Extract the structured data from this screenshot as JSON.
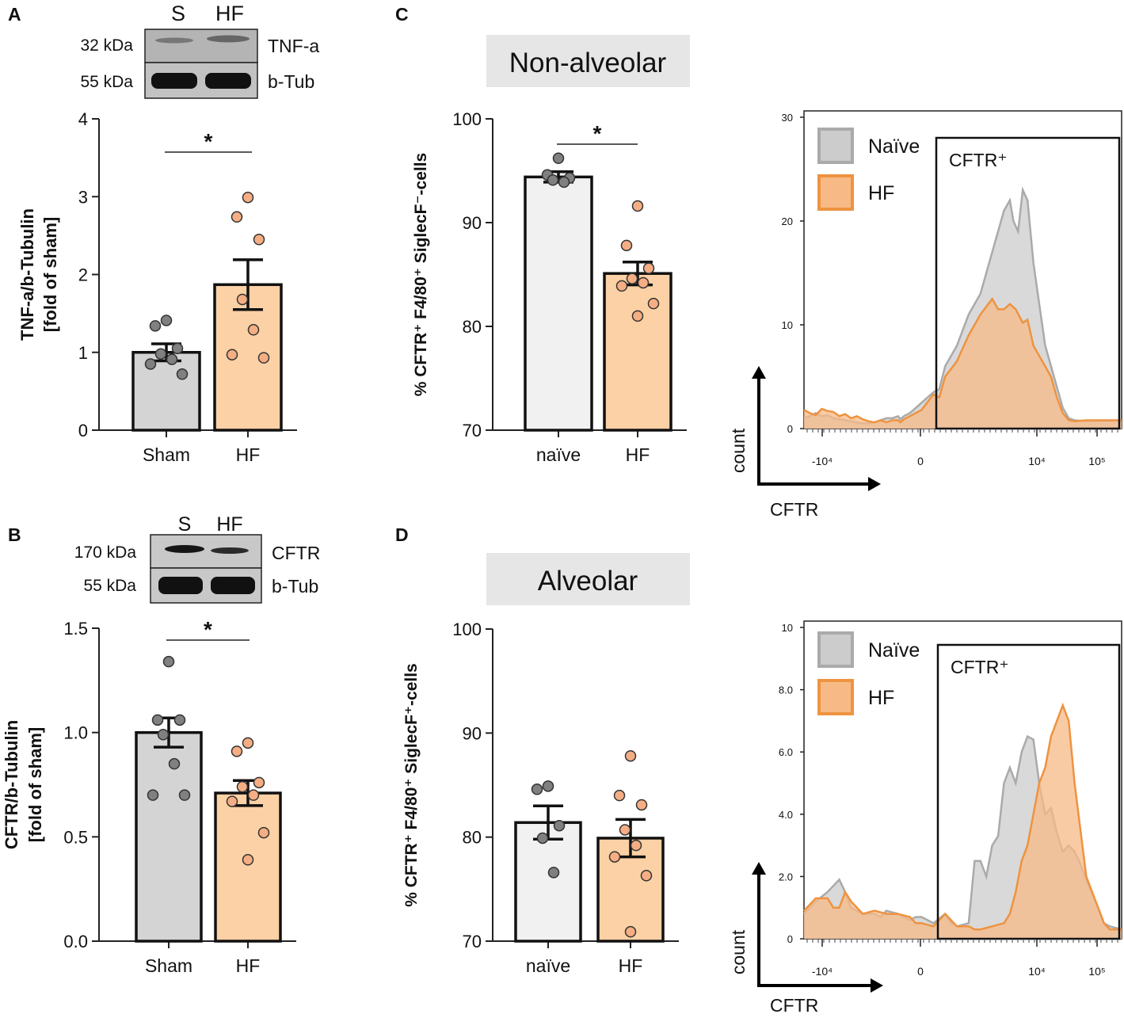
{
  "colors": {
    "sham_fill": "#d4d4d4",
    "hf_fill": "#fbd1a5",
    "naive_fill": "#f1f1f1",
    "sham_dot": "#808080",
    "hf_dot": "#f5ae84",
    "hist_naive_fill": "#cccccc",
    "hist_naive_line": "#aaaaaa",
    "hist_hf_fill": "#f7ba87",
    "hist_hf_line": "#ee9340",
    "title_box": "#e6e6e6"
  },
  "panels": {
    "A": {
      "label": "A",
      "blot": {
        "lanes": [
          "S",
          "HF"
        ],
        "rows": [
          {
            "mw": "32 kDa",
            "protein": "TNF-a"
          },
          {
            "mw": "55 kDa",
            "protein": "b-Tub"
          }
        ]
      }
    },
    "B": {
      "label": "B",
      "blot": {
        "lanes": [
          "S",
          "HF"
        ],
        "rows": [
          {
            "mw": "170 kDa",
            "protein": "CFTR"
          },
          {
            "mw": "55 kDa",
            "protein": "b-Tub"
          }
        ]
      }
    },
    "C": {
      "label": "C",
      "title": "Non-alveolar"
    },
    "D": {
      "label": "D",
      "title": "Alveolar"
    }
  },
  "chart_data": [
    {
      "id": "A",
      "type": "bar",
      "ylabel_line1": "TNF-a/b-Tubulin",
      "ylabel_line2": "[fold of sham]",
      "ylim": [
        0,
        4
      ],
      "yticks": [
        "0",
        "1",
        "2",
        "3",
        "4"
      ],
      "categories": [
        "Sham",
        "HF"
      ],
      "values": [
        1.0,
        1.87
      ],
      "sem": [
        0.11,
        0.32
      ],
      "points": [
        [
          1.41,
          1.34,
          1.05,
          0.98,
          0.91,
          0.85,
          0.72
        ],
        [
          2.99,
          2.74,
          2.45,
          1.68,
          1.29,
          0.97,
          0.93
        ]
      ],
      "significance": "*"
    },
    {
      "id": "B",
      "type": "bar",
      "ylabel_line1": "CFTR/b-Tubulin",
      "ylabel_line2": "[fold of sham]",
      "ylim": [
        0,
        1.5
      ],
      "yticks": [
        "0.0",
        "0.5",
        "1.0",
        "1.5"
      ],
      "categories": [
        "Sham",
        "HF"
      ],
      "values": [
        1.0,
        0.71
      ],
      "sem": [
        0.07,
        0.06
      ],
      "points": [
        [
          1.34,
          1.06,
          1.06,
          0.99,
          0.85,
          0.7,
          0.7
        ],
        [
          0.95,
          0.91,
          0.76,
          0.74,
          0.7,
          0.67,
          0.52,
          0.39
        ]
      ],
      "significance": "*"
    },
    {
      "id": "C",
      "type": "bar",
      "ylabel": "% CFTR⁺ F4/80⁺ SiglecF⁻-cells",
      "ylim": [
        70,
        100
      ],
      "yticks": [
        "70",
        "80",
        "90",
        "100"
      ],
      "categories": [
        "naïve",
        "HF"
      ],
      "values": [
        94.4,
        85.1
      ],
      "sem": [
        0.5,
        1.1
      ],
      "points": [
        [
          96.2,
          94.6,
          94.3,
          94.1,
          93.9
        ],
        [
          91.6,
          87.8,
          85.6,
          84.6,
          84.2,
          83.9,
          82.2,
          81.0
        ]
      ],
      "significance": "*"
    },
    {
      "id": "D",
      "type": "bar",
      "ylabel": "% CFTR⁺ F4/80⁺ SiglecF⁺-cells",
      "ylim": [
        70,
        100
      ],
      "yticks": [
        "70",
        "80",
        "90",
        "100"
      ],
      "categories": [
        "naïve",
        "HF"
      ],
      "values": [
        81.4,
        79.9
      ],
      "sem": [
        1.6,
        1.8
      ],
      "points": [
        [
          84.9,
          84.6,
          81.1,
          79.9,
          76.6
        ],
        [
          87.8,
          84.0,
          83.1,
          80.7,
          79.2,
          78.1,
          76.3,
          70.9
        ]
      ],
      "significance": ""
    }
  ],
  "histograms": [
    {
      "id": "C-hist",
      "type": "area",
      "ymax": 30,
      "yticks": [
        "0",
        "10",
        "20",
        "30"
      ],
      "xticks": [
        "-10⁴",
        "0",
        "10⁴",
        "10⁵"
      ],
      "xlabel": "CFTR",
      "ylabel": "count",
      "gate_label": "CFTR⁺",
      "legend": [
        "Naïve",
        "HF"
      ],
      "naive": [
        [
          0,
          1.0
        ],
        [
          5,
          1.2
        ],
        [
          10,
          1.5
        ],
        [
          15,
          1.2
        ],
        [
          20,
          1.3
        ],
        [
          25,
          1.0
        ],
        [
          30,
          0.9
        ],
        [
          35,
          0.8
        ],
        [
          40,
          0.7
        ],
        [
          45,
          0.6
        ],
        [
          50,
          0.5
        ],
        [
          55,
          0.5
        ],
        [
          60,
          0.6
        ],
        [
          65,
          0.8
        ],
        [
          70,
          1.0
        ],
        [
          75,
          1.0
        ],
        [
          80,
          1.2
        ],
        [
          82,
          0.9
        ],
        [
          85,
          1.2
        ],
        [
          90,
          1.5
        ],
        [
          100,
          2.5
        ],
        [
          110,
          3.5
        ],
        [
          115,
          3.8
        ],
        [
          120,
          6.0
        ],
        [
          130,
          8.0
        ],
        [
          140,
          11.0
        ],
        [
          150,
          13.0
        ],
        [
          160,
          17.0
        ],
        [
          170,
          21.0
        ],
        [
          175,
          22.0
        ],
        [
          178,
          20.0
        ],
        [
          182,
          19.0
        ],
        [
          186,
          23.0
        ],
        [
          190,
          22.0
        ],
        [
          195,
          16.0
        ],
        [
          200,
          12.0
        ],
        [
          205,
          8.0
        ],
        [
          210,
          6.0
        ],
        [
          215,
          4.0
        ],
        [
          220,
          2.0
        ],
        [
          225,
          1.0
        ],
        [
          230,
          0.8
        ],
        [
          240,
          0.7
        ],
        [
          270,
          0.8
        ]
      ],
      "hf": [
        [
          0,
          1.8
        ],
        [
          5,
          1.5
        ],
        [
          10,
          1.3
        ],
        [
          15,
          1.9
        ],
        [
          20,
          1.7
        ],
        [
          25,
          1.6
        ],
        [
          30,
          1.2
        ],
        [
          35,
          1.4
        ],
        [
          40,
          1.0
        ],
        [
          45,
          1.2
        ],
        [
          50,
          0.9
        ],
        [
          55,
          0.7
        ],
        [
          60,
          0.6
        ],
        [
          65,
          0.8
        ],
        [
          70,
          0.6
        ],
        [
          75,
          0.8
        ],
        [
          80,
          0.8
        ],
        [
          82,
          0.6
        ],
        [
          85,
          0.9
        ],
        [
          90,
          1.2
        ],
        [
          100,
          1.8
        ],
        [
          110,
          3.3
        ],
        [
          115,
          3.0
        ],
        [
          120,
          5.0
        ],
        [
          130,
          6.5
        ],
        [
          140,
          9.0
        ],
        [
          150,
          11.0
        ],
        [
          160,
          12.5
        ],
        [
          165,
          11.5
        ],
        [
          170,
          11.5
        ],
        [
          175,
          12.0
        ],
        [
          180,
          11.5
        ],
        [
          186,
          10.2
        ],
        [
          190,
          10.5
        ],
        [
          195,
          8.0
        ],
        [
          200,
          7.0
        ],
        [
          205,
          6.0
        ],
        [
          210,
          5.0
        ],
        [
          215,
          3.0
        ],
        [
          220,
          1.5
        ],
        [
          225,
          0.8
        ],
        [
          230,
          0.7
        ],
        [
          240,
          0.8
        ],
        [
          270,
          0.8
        ]
      ]
    },
    {
      "id": "D-hist",
      "type": "area",
      "ymax": 10,
      "yticks": [
        "0",
        "2.0",
        "4.0",
        "6.0",
        "8.0",
        "10"
      ],
      "xticks": [
        "-10⁴",
        "0",
        "10⁴",
        "10⁵"
      ],
      "xlabel": "CFTR",
      "ylabel": "count",
      "gate_label": "CFTR⁺",
      "legend": [
        "Naïve",
        "HF"
      ],
      "naive": [
        [
          0,
          0.8
        ],
        [
          10,
          1.2
        ],
        [
          20,
          1.5
        ],
        [
          25,
          1.7
        ],
        [
          30,
          1.9
        ],
        [
          35,
          1.5
        ],
        [
          40,
          1.0
        ],
        [
          50,
          0.8
        ],
        [
          60,
          0.8
        ],
        [
          65,
          0.7
        ],
        [
          70,
          0.9
        ],
        [
          80,
          0.8
        ],
        [
          85,
          0.7
        ],
        [
          90,
          0.6
        ],
        [
          95,
          0.7
        ],
        [
          100,
          0.7
        ],
        [
          110,
          0.5
        ],
        [
          120,
          0.8
        ],
        [
          125,
          0.5
        ],
        [
          130,
          0.4
        ],
        [
          140,
          0.5
        ],
        [
          145,
          2.5
        ],
        [
          150,
          2.5
        ],
        [
          155,
          2.0
        ],
        [
          160,
          3.0
        ],
        [
          165,
          3.3
        ],
        [
          170,
          5.0
        ],
        [
          175,
          5.5
        ],
        [
          180,
          5.0
        ],
        [
          185,
          6.0
        ],
        [
          190,
          6.5
        ],
        [
          195,
          6.4
        ],
        [
          200,
          5.0
        ],
        [
          205,
          4.0
        ],
        [
          210,
          4.2
        ],
        [
          215,
          3.4
        ],
        [
          220,
          2.8
        ],
        [
          225,
          3.0
        ],
        [
          230,
          2.8
        ],
        [
          235,
          2.4
        ],
        [
          240,
          1.9
        ],
        [
          250,
          1.0
        ],
        [
          255,
          0.5
        ],
        [
          260,
          0.4
        ],
        [
          270,
          0.3
        ]
      ],
      "hf": [
        [
          0,
          0.9
        ],
        [
          10,
          1.3
        ],
        [
          20,
          1.3
        ],
        [
          25,
          1.0
        ],
        [
          30,
          1.0
        ],
        [
          35,
          1.5
        ],
        [
          40,
          1.2
        ],
        [
          50,
          0.8
        ],
        [
          60,
          0.9
        ],
        [
          70,
          0.8
        ],
        [
          80,
          0.8
        ],
        [
          90,
          0.7
        ],
        [
          95,
          0.5
        ],
        [
          100,
          0.5
        ],
        [
          110,
          0.4
        ],
        [
          120,
          0.8
        ],
        [
          125,
          0.6
        ],
        [
          130,
          0.4
        ],
        [
          140,
          0.4
        ],
        [
          145,
          0.3
        ],
        [
          150,
          0.3
        ],
        [
          160,
          0.4
        ],
        [
          170,
          0.5
        ],
        [
          175,
          0.8
        ],
        [
          180,
          1.5
        ],
        [
          185,
          2.5
        ],
        [
          190,
          3.0
        ],
        [
          195,
          4.0
        ],
        [
          200,
          5.0
        ],
        [
          205,
          5.5
        ],
        [
          210,
          6.5
        ],
        [
          215,
          7.0
        ],
        [
          220,
          7.5
        ],
        [
          225,
          7.0
        ],
        [
          230,
          5.0
        ],
        [
          235,
          3.5
        ],
        [
          240,
          2.0
        ],
        [
          250,
          1.0
        ],
        [
          255,
          0.5
        ],
        [
          260,
          0.3
        ],
        [
          270,
          0.3
        ]
      ]
    }
  ]
}
